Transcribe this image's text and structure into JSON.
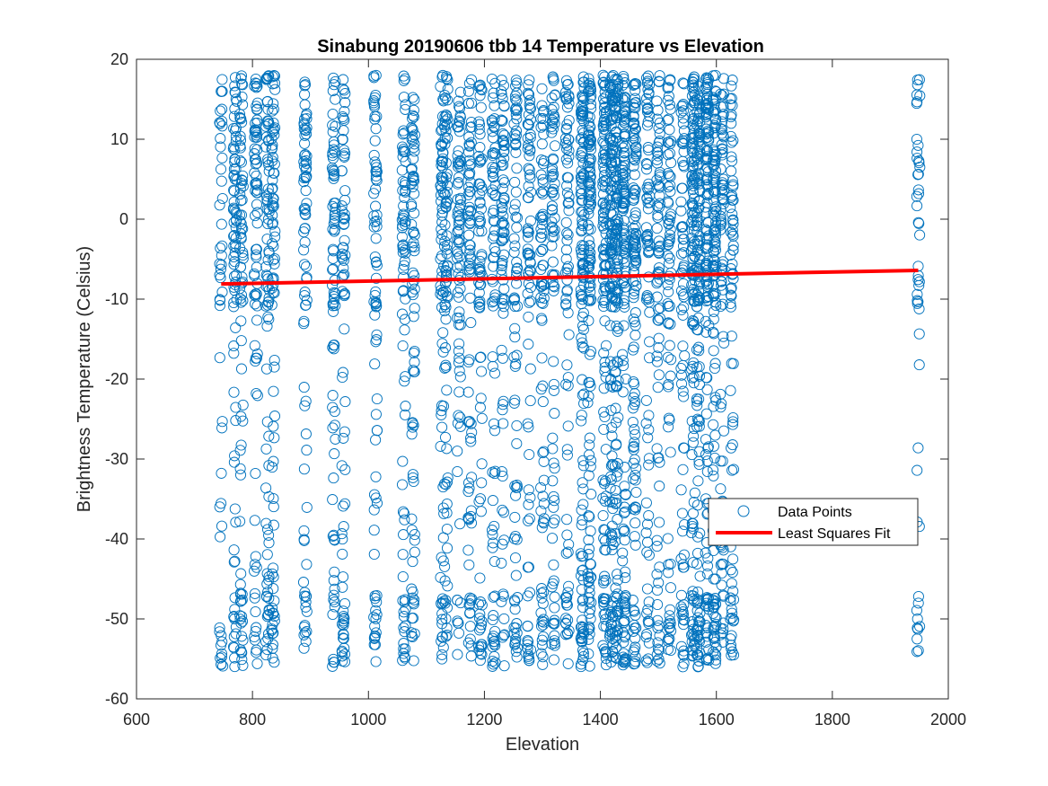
{
  "chart_data": {
    "type": "scatter",
    "title": "Sinabung 20190606 tbb 14 Temperature vs Elevation",
    "xlabel": "Elevation",
    "ylabel": "Brightness Temperature (Celsius)",
    "xlim": [
      600,
      2000
    ],
    "ylim": [
      -60,
      20
    ],
    "xticks": [
      "600",
      "800",
      "1000",
      "1200",
      "1400",
      "1600",
      "1800",
      "2000"
    ],
    "yticks": [
      "20",
      "10",
      "0",
      "-10",
      "-20",
      "-30",
      "-40",
      "-50",
      "-60"
    ],
    "legend_position": "lower-right",
    "grid": false,
    "colors": {
      "points": "#0072BD",
      "fit": "#FF0000"
    },
    "series": [
      {
        "name": "Data Points",
        "marker": "open-circle",
        "x_columns": [
          746,
          770,
          781,
          806,
          826,
          836,
          891,
          940,
          957,
          1012,
          1061,
          1077,
          1127,
          1134,
          1156,
          1175,
          1193,
          1216,
          1232,
          1254,
          1277,
          1300,
          1319,
          1343,
          1369,
          1381,
          1407,
          1419,
          1428,
          1441,
          1459,
          1482,
          1500,
          1519,
          1542,
          1560,
          1569,
          1584,
          1597,
          1610,
          1627,
          1948
        ],
        "y_range": [
          -56,
          18
        ],
        "approx_point_count": 3400
      },
      {
        "name": "Least Squares Fit",
        "marker": "line",
        "x": [
          746,
          1948
        ],
        "y": [
          -8.1,
          -6.4
        ]
      }
    ]
  }
}
